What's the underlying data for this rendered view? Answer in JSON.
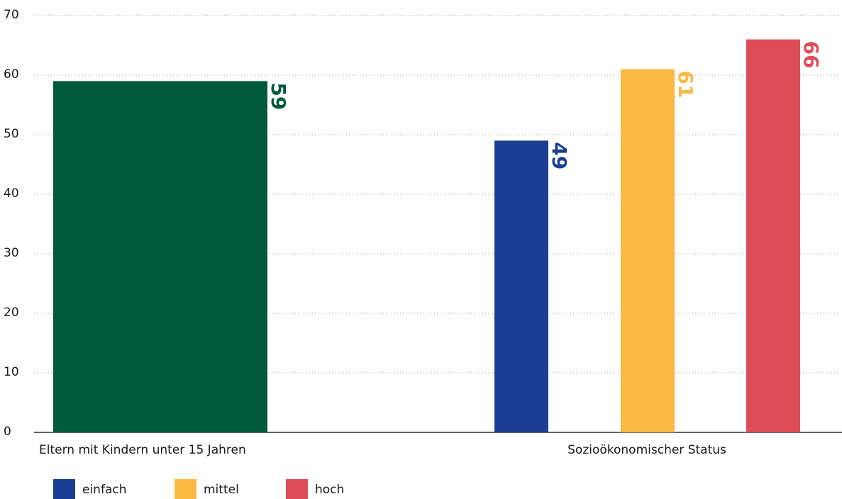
{
  "chart_data": {
    "type": "bar",
    "categories": [
      "Eltern mit Kindern unter 15 Jahren",
      "Sozioökonomischer Status"
    ],
    "series": [
      {
        "color": "#005a3c",
        "values": [
          59,
          null
        ]
      },
      {
        "name": "einfach",
        "color": "#1a3f94",
        "values": [
          null,
          49
        ]
      },
      {
        "name": "mittel",
        "color": "#f9b942",
        "values": [
          null,
          61
        ]
      },
      {
        "name": "hoch",
        "color": "#de4d57",
        "values": [
          null,
          66
        ]
      }
    ],
    "ylim": [
      0,
      70
    ],
    "yticks": [
      0,
      10,
      20,
      30,
      40,
      50,
      60,
      70
    ],
    "grid": true
  }
}
